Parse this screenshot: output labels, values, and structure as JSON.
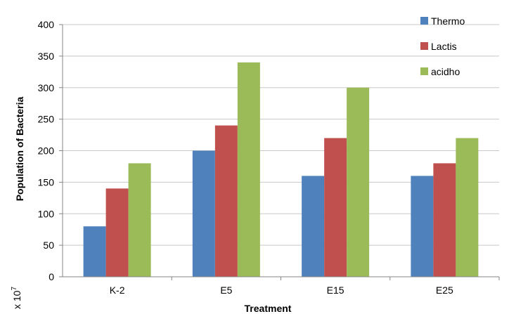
{
  "chart_data": {
    "type": "bar",
    "title": "",
    "xlabel": "Treatment",
    "ylabel": "Population of Bacteria",
    "y_multiplier_label": "x 10",
    "y_multiplier_exponent": "7",
    "categories": [
      "K-2",
      "E5",
      "E15",
      "E25"
    ],
    "series": [
      {
        "name": "Thermo",
        "color": "#4f81bd",
        "values": [
          80,
          200,
          160,
          160
        ]
      },
      {
        "name": "Lactis",
        "color": "#c0504d",
        "values": [
          140,
          240,
          220,
          180
        ]
      },
      {
        "name": "acidho",
        "color": "#9bbb59",
        "values": [
          180,
          340,
          300,
          220
        ]
      }
    ],
    "ylim": [
      0,
      400
    ],
    "yticks": [
      0,
      50,
      100,
      150,
      200,
      250,
      300,
      350,
      400
    ],
    "grid": true,
    "legend_position": "top-right"
  }
}
